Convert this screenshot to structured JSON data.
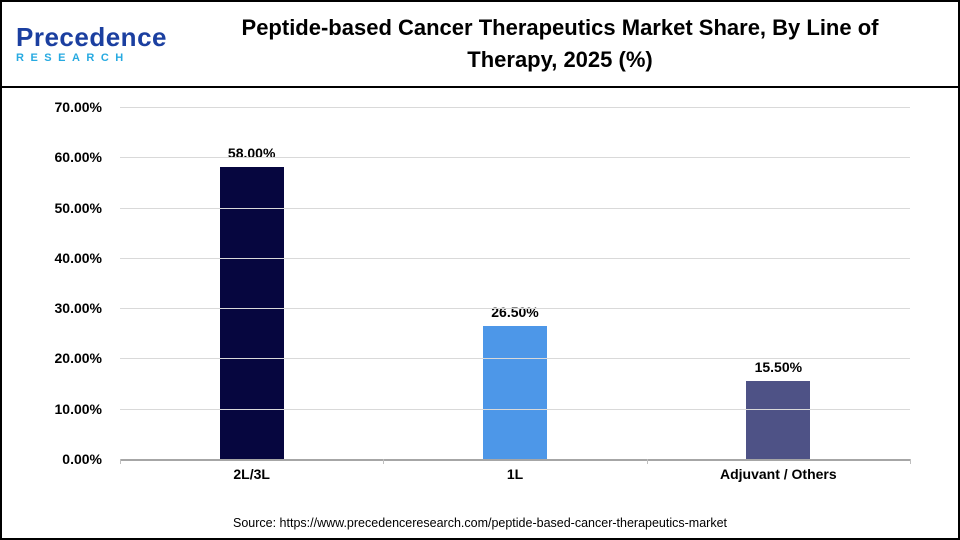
{
  "header": {
    "logo_primary": "Precedence",
    "logo_secondary": "RESEARCH",
    "title_line1": "Peptide-based Cancer Therapeutics Market Share, By Line of",
    "title_line2": "Therapy, 2025 (%)"
  },
  "chart_data": {
    "type": "bar",
    "title": "Peptide-based Cancer Therapeutics Market Share, By Line of Therapy, 2025 (%)",
    "categories": [
      "2L/3L",
      "1L",
      "Adjuvant / Others"
    ],
    "values": [
      58.0,
      26.5,
      15.5
    ],
    "value_labels": [
      "58.00%",
      "26.50%",
      "15.50%"
    ],
    "bar_colors": [
      "#06063f",
      "#4d97e8",
      "#4e5286"
    ],
    "xlabel": "",
    "ylabel": "",
    "ylim": [
      0,
      70
    ],
    "yticks": [
      0,
      10,
      20,
      30,
      40,
      50,
      60,
      70
    ],
    "ytick_labels": [
      "0.00%",
      "10.00%",
      "20.00%",
      "30.00%",
      "40.00%",
      "50.00%",
      "60.00%",
      "70.00%"
    ],
    "grid": true,
    "legend": "none"
  },
  "footer": {
    "source": "Source: https://www.precedenceresearch.com/peptide-based-cancer-therapeutics-market"
  }
}
